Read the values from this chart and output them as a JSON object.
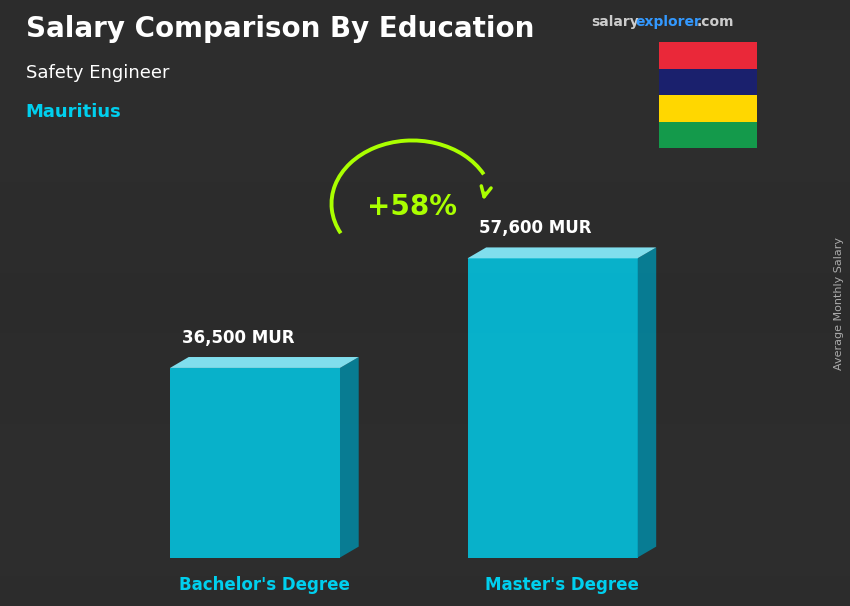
{
  "title": "Salary Comparison By Education",
  "subtitle": "Safety Engineer",
  "country": "Mauritius",
  "categories": [
    "Bachelor's Degree",
    "Master's Degree"
  ],
  "values": [
    36500,
    57600
  ],
  "value_labels": [
    "36,500 MUR",
    "57,600 MUR"
  ],
  "pct_change": "+58%",
  "bar_color_face": "#00cfee",
  "bar_color_side": "#008eaa",
  "bar_color_top": "#88eeff",
  "bar_alpha": 0.82,
  "background_color": "#3a3a3a",
  "title_color": "#ffffff",
  "subtitle_color": "#ffffff",
  "country_color": "#00cfee",
  "label_color": "#ffffff",
  "xticklabel_color": "#00cfee",
  "pct_color": "#aaff00",
  "arrow_color": "#aaff00",
  "site_salary_color": "#cccccc",
  "site_explorer_color": "#3399ff",
  "ylabel_text": "Average Monthly Salary",
  "flag_colors": [
    "#EA2839",
    "#1A206D",
    "#FFD700",
    "#149A4B"
  ],
  "figsize": [
    8.5,
    6.06
  ],
  "dpi": 100
}
